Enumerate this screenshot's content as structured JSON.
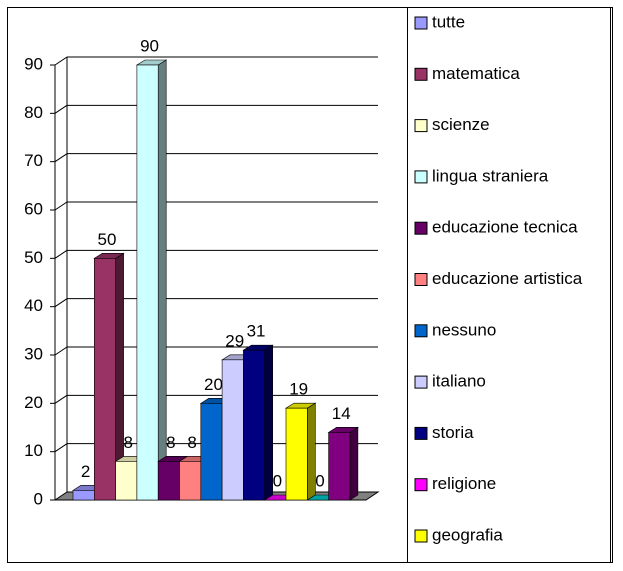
{
  "chart_data": {
    "type": "bar",
    "series": [
      {
        "name": "tutte",
        "color": "#9999ff",
        "values": [
          2
        ]
      },
      {
        "name": "matematica",
        "color": "#993366",
        "values": [
          50
        ]
      },
      {
        "name": "scienze",
        "color": "#ffffcc",
        "values": [
          8
        ]
      },
      {
        "name": "lingua straniera",
        "color": "#ccffff",
        "values": [
          90
        ]
      },
      {
        "name": "educazione tecnica",
        "color": "#660066",
        "values": [
          8
        ]
      },
      {
        "name": "educazione artistica",
        "color": "#ff8080",
        "values": [
          8
        ]
      },
      {
        "name": "nessuno",
        "color": "#0066cc",
        "values": [
          20
        ]
      },
      {
        "name": "italiano",
        "color": "#ccccff",
        "values": [
          29
        ]
      },
      {
        "name": "storia",
        "color": "#000080",
        "values": [
          31
        ]
      },
      {
        "name": "religione",
        "color": "#ff00ff",
        "values": [
          0
        ]
      },
      {
        "name": "geografia",
        "color": "#ffff00",
        "values": [
          19
        ]
      },
      {
        "name": null,
        "color": "#00cccc",
        "values": [
          0
        ]
      },
      {
        "name": null,
        "color": "#800080",
        "values": [
          14
        ]
      }
    ],
    "ylim": [
      0,
      90
    ],
    "yticks": [
      0,
      10,
      20,
      30,
      40,
      50,
      60,
      70,
      80,
      90
    ],
    "grid": true,
    "legend": "right"
  }
}
